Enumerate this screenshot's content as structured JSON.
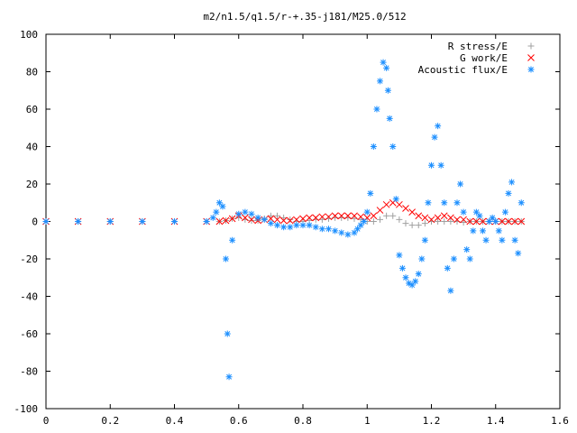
{
  "chart_data": {
    "type": "scatter",
    "title": "m2/n1.5/q1.5/r-+.35-j181/M25.0/512",
    "xlabel": "",
    "ylabel": "",
    "xlim": [
      0,
      1.6
    ],
    "ylim": [
      -100,
      100
    ],
    "xticks": [
      0,
      0.2,
      0.4,
      0.6,
      0.8,
      1,
      1.2,
      1.4,
      1.6
    ],
    "yticks": [
      -100,
      -80,
      -60,
      -40,
      -20,
      0,
      20,
      40,
      60,
      80,
      100
    ],
    "xtick_labels": [
      "0",
      "0.2",
      "0.4",
      "0.6",
      "0.8",
      "1",
      "1.2",
      "1.4",
      "1.6"
    ],
    "ytick_labels": [
      "-100",
      "-80",
      "-60",
      "-40",
      "-20",
      "0",
      "20",
      "40",
      "60",
      "80",
      "100"
    ],
    "grid": false,
    "legend_position": "top-right",
    "series": [
      {
        "name": "R stress/E",
        "color": "#a0a0a0",
        "marker": "plus",
        "x": [
          0.0,
          0.1,
          0.2,
          0.3,
          0.4,
          0.5,
          0.54,
          0.56,
          0.58,
          0.6,
          0.62,
          0.64,
          0.66,
          0.68,
          0.7,
          0.72,
          0.74,
          0.76,
          0.78,
          0.8,
          0.82,
          0.84,
          0.86,
          0.88,
          0.9,
          0.92,
          0.94,
          0.96,
          0.98,
          1.0,
          1.02,
          1.04,
          1.06,
          1.08,
          1.1,
          1.12,
          1.14,
          1.16,
          1.18,
          1.2,
          1.22,
          1.24,
          1.26,
          1.28,
          1.3,
          1.32,
          1.34,
          1.36,
          1.38,
          1.4,
          1.42,
          1.44,
          1.46,
          1.48
        ],
        "y": [
          0,
          0,
          0,
          0,
          0,
          0,
          0,
          0.5,
          1.5,
          2,
          1,
          0.5,
          0.5,
          1.5,
          3,
          3,
          2,
          1,
          0,
          0,
          0.5,
          1,
          1,
          1.5,
          2,
          2,
          2,
          1.5,
          1,
          0,
          0,
          1,
          3,
          3,
          1,
          -1,
          -2,
          -2,
          -1,
          0,
          0,
          0,
          0,
          0,
          -0.5,
          0,
          0,
          0,
          0,
          0,
          0,
          0,
          0,
          0
        ]
      },
      {
        "name": "G work/E",
        "color": "#ff0000",
        "marker": "cross",
        "x": [
          0.0,
          0.1,
          0.2,
          0.3,
          0.4,
          0.5,
          0.54,
          0.56,
          0.58,
          0.6,
          0.62,
          0.64,
          0.66,
          0.68,
          0.7,
          0.72,
          0.74,
          0.76,
          0.78,
          0.8,
          0.82,
          0.84,
          0.86,
          0.88,
          0.9,
          0.92,
          0.94,
          0.96,
          0.98,
          1.0,
          1.02,
          1.04,
          1.06,
          1.08,
          1.1,
          1.12,
          1.14,
          1.16,
          1.18,
          1.2,
          1.22,
          1.24,
          1.26,
          1.28,
          1.3,
          1.32,
          1.34,
          1.36,
          1.38,
          1.4,
          1.42,
          1.44,
          1.46,
          1.48
        ],
        "y": [
          0,
          0,
          0,
          0,
          0,
          0,
          0,
          0.5,
          1.5,
          3,
          2,
          1,
          0.5,
          1,
          1.5,
          1,
          0.5,
          0.5,
          1,
          1.5,
          2,
          2,
          2.5,
          2.5,
          3,
          3,
          3,
          3,
          2.5,
          2,
          3,
          6,
          9,
          10,
          9,
          7,
          5,
          3,
          2,
          1,
          2,
          3,
          2,
          1,
          1,
          0,
          0,
          0,
          0,
          0,
          0,
          0,
          0,
          0
        ]
      },
      {
        "name": "Acoustic flux/E",
        "color": "#1e90ff",
        "marker": "star",
        "x": [
          0.0,
          0.1,
          0.2,
          0.3,
          0.4,
          0.5,
          0.52,
          0.53,
          0.54,
          0.55,
          0.56,
          0.565,
          0.57,
          0.58,
          0.6,
          0.62,
          0.64,
          0.66,
          0.68,
          0.7,
          0.72,
          0.74,
          0.76,
          0.78,
          0.8,
          0.82,
          0.84,
          0.86,
          0.88,
          0.9,
          0.92,
          0.94,
          0.96,
          0.97,
          0.98,
          0.99,
          1.0,
          1.01,
          1.02,
          1.03,
          1.04,
          1.05,
          1.06,
          1.065,
          1.07,
          1.08,
          1.09,
          1.1,
          1.11,
          1.12,
          1.13,
          1.14,
          1.15,
          1.16,
          1.17,
          1.18,
          1.19,
          1.2,
          1.21,
          1.22,
          1.23,
          1.24,
          1.25,
          1.26,
          1.27,
          1.28,
          1.29,
          1.3,
          1.31,
          1.32,
          1.33,
          1.34,
          1.35,
          1.36,
          1.37,
          1.38,
          1.39,
          1.4,
          1.41,
          1.42,
          1.43,
          1.44,
          1.45,
          1.46,
          1.47,
          1.48
        ],
        "y": [
          0,
          0,
          0,
          0,
          0,
          0,
          2,
          5,
          10,
          8,
          -20,
          -60,
          -83,
          -10,
          4,
          5,
          4,
          2,
          1,
          -1,
          -2,
          -3,
          -3,
          -2,
          -2,
          -2,
          -3,
          -4,
          -4,
          -5,
          -6,
          -7,
          -6,
          -4,
          -2,
          0,
          5,
          15,
          40,
          60,
          75,
          85,
          82,
          70,
          55,
          40,
          12,
          -18,
          -25,
          -30,
          -33,
          -34,
          -32,
          -28,
          -20,
          -10,
          10,
          30,
          45,
          51,
          30,
          10,
          -25,
          -37,
          -20,
          10,
          20,
          5,
          -15,
          -20,
          -5,
          5,
          3,
          -5,
          -10,
          0,
          2,
          0,
          -5,
          -10,
          5,
          15,
          21,
          -10,
          -17,
          10
        ]
      }
    ]
  }
}
